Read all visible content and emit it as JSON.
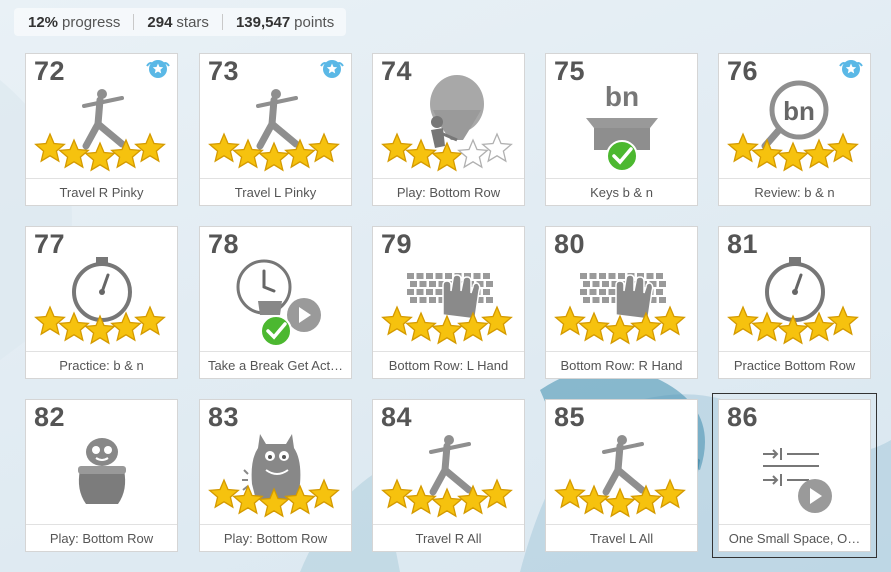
{
  "stats": {
    "progress_value": "12%",
    "progress_label": "progress",
    "stars_value": "294",
    "stars_label": "stars",
    "points_value": "139,547",
    "points_label": "points"
  },
  "colors": {
    "star": "#f6c20e",
    "check": "#4cb830",
    "badge": "#5ab8e6",
    "art_gray": "#8f8f8f"
  },
  "lessons": [
    {
      "number": "72",
      "title": "Travel R Pinky",
      "icon": "yoga-figure-icon",
      "stars": 5,
      "badge": true
    },
    {
      "number": "73",
      "title": "Travel L Pinky",
      "icon": "yoga-figure-icon",
      "stars": 5,
      "badge": true
    },
    {
      "number": "74",
      "title": "Play: Bottom Row",
      "icon": "hot-air-balloon-icon",
      "stars": 3,
      "badge": false
    },
    {
      "number": "75",
      "title": "Keys b & n",
      "icon": "keys-box-icon",
      "stars": 0,
      "badge": false,
      "check": true,
      "art_text": "bn"
    },
    {
      "number": "76",
      "title": "Review: b & n",
      "icon": "magnifier-icon",
      "stars": 5,
      "badge": true,
      "art_text": "bn"
    },
    {
      "number": "77",
      "title": "Practice: b & n",
      "icon": "stopwatch-icon",
      "stars": 5,
      "badge": false
    },
    {
      "number": "78",
      "title": "Take a Break Get Act…",
      "icon": "coffee-break-icon",
      "stars": 0,
      "badge": false,
      "check": true
    },
    {
      "number": "79",
      "title": "Bottom Row: L Hand",
      "icon": "keyboard-hand-icon",
      "stars": 5,
      "badge": false
    },
    {
      "number": "80",
      "title": "Bottom Row: R Hand",
      "icon": "keyboard-hand-icon",
      "stars": 5,
      "badge": false
    },
    {
      "number": "81",
      "title": "Practice Bottom Row",
      "icon": "stopwatch-icon",
      "stars": 5,
      "badge": false
    },
    {
      "number": "82",
      "title": "Play: Bottom Row",
      "icon": "creature-in-pot-icon",
      "stars": 0,
      "badge": false
    },
    {
      "number": "83",
      "title": "Play: Bottom Row",
      "icon": "monster-icon",
      "stars": 5,
      "badge": false
    },
    {
      "number": "84",
      "title": "Travel R All",
      "icon": "yoga-figure-icon",
      "stars": 5,
      "badge": false
    },
    {
      "number": "85",
      "title": "Travel L All",
      "icon": "yoga-figure-icon",
      "stars": 5,
      "badge": false
    },
    {
      "number": "86",
      "title": "One Small Space, O…",
      "icon": "spacing-video-icon",
      "stars": 0,
      "badge": false,
      "selected": true
    }
  ]
}
